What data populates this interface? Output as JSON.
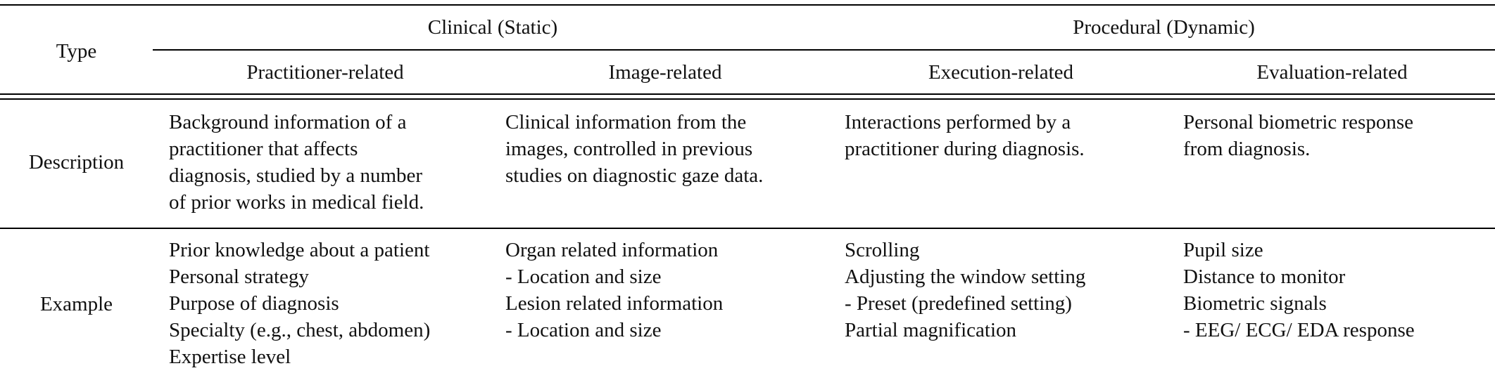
{
  "table": {
    "header": {
      "type_label": "Type",
      "group_clinical": "Clinical (Static)",
      "group_procedural": "Procedural (Dynamic)",
      "col_practitioner": "Practitioner-related",
      "col_image": "Image-related",
      "col_execution": "Execution-related",
      "col_evaluation": "Evaluation-related"
    },
    "rows": [
      {
        "label": "Description",
        "practitioner": [
          "Background information of a",
          "practitioner that affects",
          "diagnosis, studied by a number",
          "of prior works in medical field."
        ],
        "image": [
          "Clinical information from the",
          "images, controlled in previous",
          "studies on diagnostic gaze data."
        ],
        "execution": [
          "Interactions performed by a",
          "practitioner during diagnosis."
        ],
        "evaluation": [
          "Personal biometric response",
          "from diagnosis."
        ]
      },
      {
        "label": "Example",
        "practitioner": [
          "Prior knowledge about a patient",
          "Personal strategy",
          "Purpose of diagnosis",
          "Specialty (e.g., chest, abdomen)",
          "Expertise level"
        ],
        "image": [
          "Organ related information",
          "- Location and size",
          "Lesion related information",
          "- Location and size"
        ],
        "execution": [
          "Scrolling",
          "Adjusting the window setting",
          "- Preset (predefined setting)",
          "Partial magnification"
        ],
        "evaluation": [
          "Pupil size",
          "Distance to monitor",
          "Biometric signals",
          "- EEG/ ECG/ EDA response"
        ]
      }
    ]
  }
}
